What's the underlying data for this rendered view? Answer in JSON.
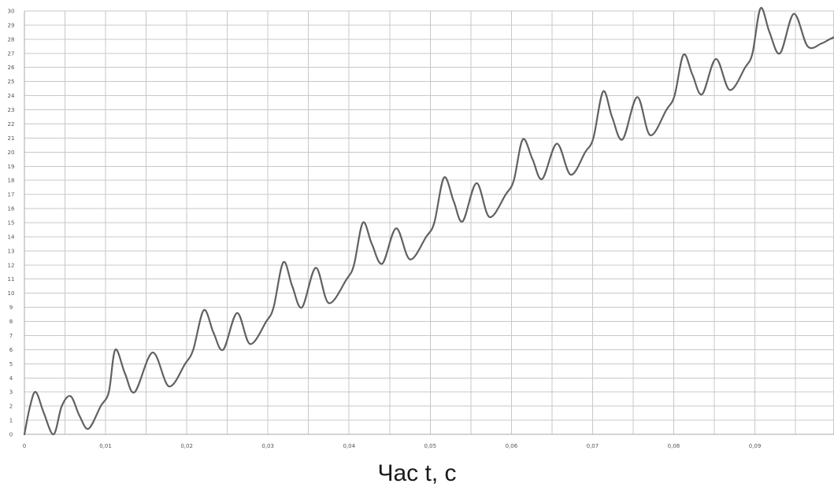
{
  "chart_data": {
    "type": "line",
    "xlabel": "Час t, с",
    "ylabel": "",
    "xlim": [
      0,
      0.1
    ],
    "ylim": [
      0,
      30
    ],
    "x_ticks": [
      "0",
      "0,01",
      "0,02",
      "0,03",
      "0,04",
      "0,05",
      "0,06",
      "0,07",
      "0,08",
      "0,09"
    ],
    "y_ticks": [
      "0",
      "1",
      "2",
      "3",
      "4",
      "5",
      "6",
      "7",
      "8",
      "9",
      "10",
      "11",
      "12",
      "13",
      "14",
      "15",
      "16",
      "17",
      "18",
      "19",
      "20",
      "21",
      "22",
      "23",
      "24",
      "25",
      "26",
      "27",
      "28",
      "29",
      "30"
    ],
    "grid": true,
    "series": [
      {
        "color": "#616161",
        "x": [
          0,
          0.0007,
          0.0014,
          0.0024,
          0.0036,
          0.0046,
          0.0057,
          0.0068,
          0.0079,
          0.0094,
          0.0104,
          0.0112,
          0.0124,
          0.0136,
          0.0158,
          0.0178,
          0.0198,
          0.0208,
          0.0221,
          0.0233,
          0.0245,
          0.0262,
          0.0278,
          0.0298,
          0.0307,
          0.0319,
          0.033,
          0.0342,
          0.0359,
          0.0375,
          0.0397,
          0.0406,
          0.0417,
          0.0428,
          0.0441,
          0.0458,
          0.0475,
          0.0495,
          0.0505,
          0.0517,
          0.0529,
          0.054,
          0.0557,
          0.0573,
          0.0593,
          0.0603,
          0.0614,
          0.0626,
          0.0638,
          0.0656,
          0.0673,
          0.0691,
          0.0701,
          0.0713,
          0.0724,
          0.0737,
          0.0755,
          0.0771,
          0.0791,
          0.0801,
          0.0812,
          0.0823,
          0.0835,
          0.0852,
          0.0869,
          0.0888,
          0.0897,
          0.0907,
          0.0918,
          0.0931,
          0.0948,
          0.0965,
          0.0982,
          0.0992,
          0.1
        ],
        "y": [
          0,
          2,
          3,
          1.5,
          0,
          2,
          2.7,
          1.3,
          0.4,
          2,
          3,
          6,
          4.3,
          3,
          5.8,
          3.4,
          5,
          6,
          8.8,
          7.2,
          6,
          8.6,
          6.4,
          8,
          9,
          12.2,
          10.5,
          9,
          11.8,
          9.3,
          11,
          12,
          15,
          13.5,
          12.1,
          14.6,
          12.4,
          14,
          15,
          18.2,
          16.5,
          15.1,
          17.8,
          15.4,
          17,
          18,
          20.9,
          19.5,
          18.1,
          20.6,
          18.4,
          20,
          21,
          24.3,
          22.5,
          20.9,
          23.9,
          21.2,
          23,
          24,
          26.9,
          25.5,
          24.1,
          26.6,
          24.4,
          26,
          27,
          30.2,
          28.5,
          27,
          29.8,
          27.5,
          27.7,
          28,
          28.2
        ]
      }
    ]
  }
}
